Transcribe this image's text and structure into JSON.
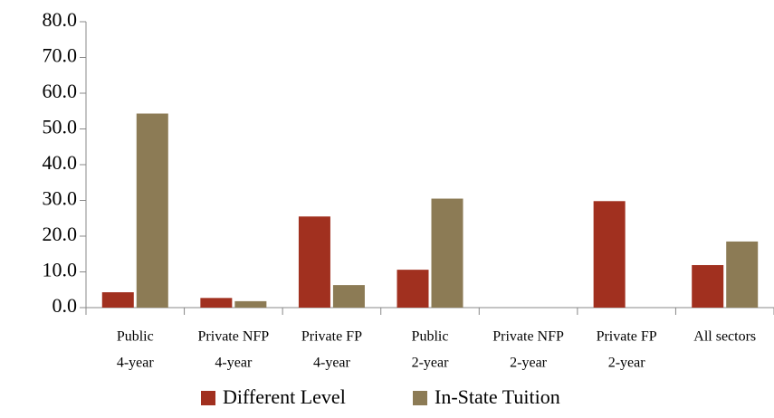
{
  "chart_data": {
    "type": "bar",
    "categories": [
      [
        "Public",
        "4-year"
      ],
      [
        "Private NFP",
        "4-year"
      ],
      [
        "Private FP",
        "4-year"
      ],
      [
        "Public",
        "2-year"
      ],
      [
        "Private NFP",
        "2-year"
      ],
      [
        "Private FP",
        "2-year"
      ],
      [
        "All sectors"
      ]
    ],
    "series": [
      {
        "name": "Different Level",
        "color": "#a1301f",
        "values": [
          4.3,
          2.7,
          25.5,
          10.6,
          0,
          29.8,
          11.9
        ]
      },
      {
        "name": "In-State Tuition",
        "color": "#8c7b55",
        "values": [
          54.3,
          1.8,
          6.3,
          30.5,
          0,
          0,
          18.5
        ]
      }
    ],
    "ylim": [
      0,
      80
    ],
    "yticks": [
      {
        "value": 0,
        "label": "0.0"
      },
      {
        "value": 10,
        "label": "10.0"
      },
      {
        "value": 20,
        "label": "20.0"
      },
      {
        "value": 30,
        "label": "30.0"
      },
      {
        "value": 40,
        "label": "40.0"
      },
      {
        "value": 50,
        "label": "50.0"
      },
      {
        "value": 60,
        "label": "60.0"
      },
      {
        "value": 70,
        "label": "70.0"
      },
      {
        "value": 80,
        "label": "80.0"
      }
    ],
    "legend": "bottom"
  }
}
